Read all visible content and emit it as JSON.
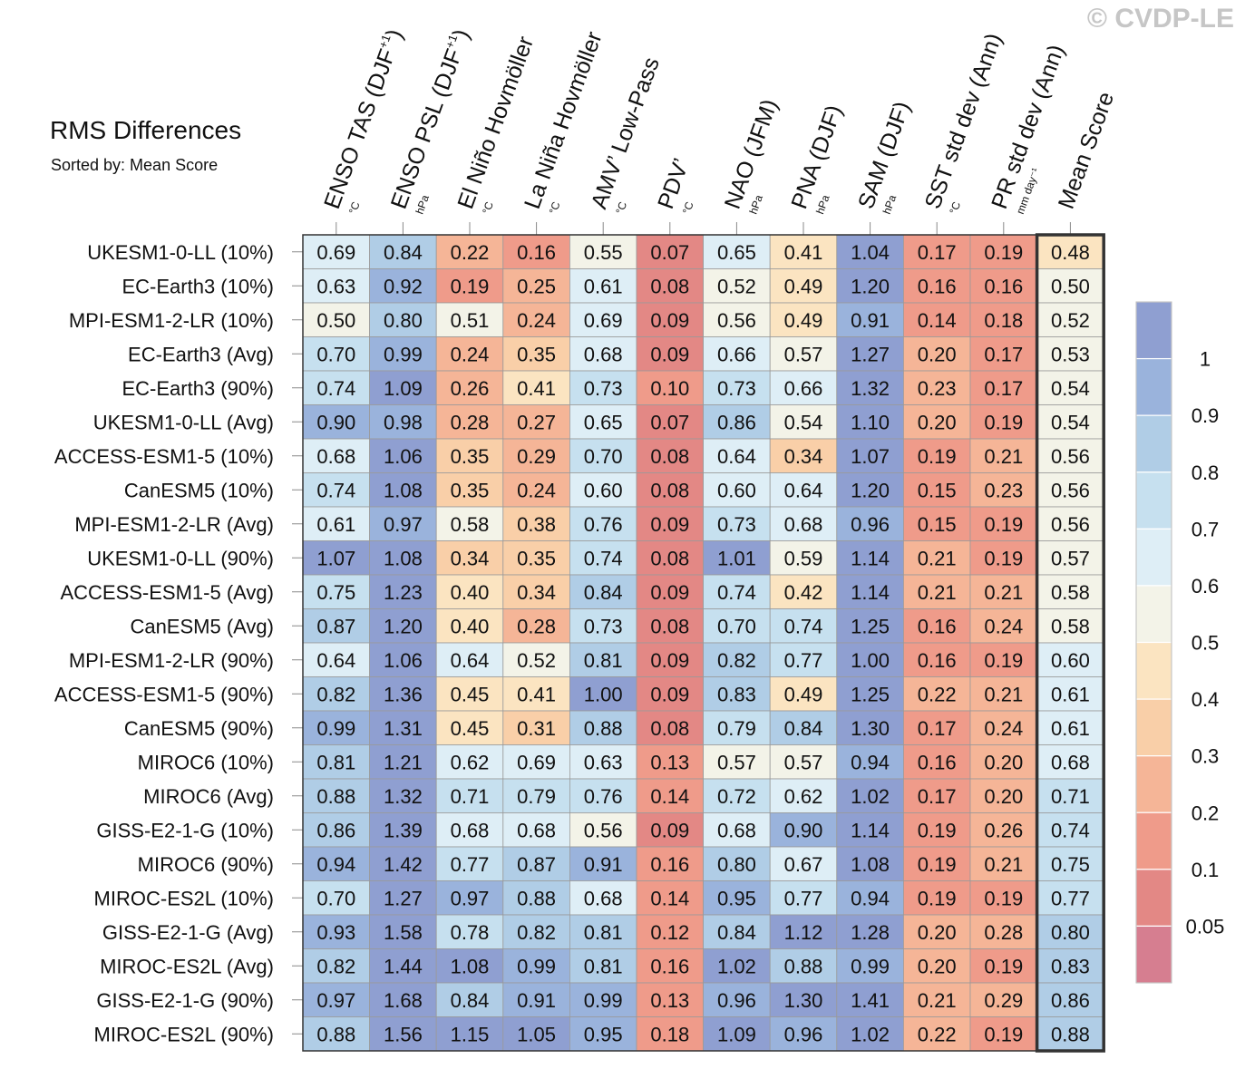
{
  "watermark": "© CVDP-LE",
  "chart_data": {
    "type": "heatmap",
    "title": "RMS Differences",
    "subtitle": "Sorted by: Mean Score",
    "columns": [
      {
        "name": "ENSO TAS (DJF",
        "sup": "+1",
        "close": ")",
        "unit": "°C"
      },
      {
        "name": "ENSO PSL (DJF",
        "sup": "+1",
        "close": ")",
        "unit": "hPa"
      },
      {
        "name": "El Niño Hovmöller",
        "sup": "",
        "close": "",
        "unit": "°C"
      },
      {
        "name": "La Niña Hovmöller",
        "sup": "",
        "close": "",
        "unit": "°C"
      },
      {
        "name": "AMV’ Low-Pass",
        "sup": "",
        "close": "",
        "unit": "°C"
      },
      {
        "name": "PDV’",
        "sup": "",
        "close": "",
        "unit": "°C"
      },
      {
        "name": "NAO (JFM)",
        "sup": "",
        "close": "",
        "unit": "hPa"
      },
      {
        "name": "PNA (DJF)",
        "sup": "",
        "close": "",
        "unit": "hPa"
      },
      {
        "name": "SAM (DJF)",
        "sup": "",
        "close": "",
        "unit": "hPa"
      },
      {
        "name": "SST std dev (Ann)",
        "sup": "",
        "close": "",
        "unit": "°C"
      },
      {
        "name": "PR std dev (Ann)",
        "sup": "",
        "close": "",
        "unit": "mm day⁻¹"
      },
      {
        "name": "Mean Score",
        "sup": "",
        "close": "",
        "unit": ""
      }
    ],
    "rows": [
      "UKESM1-0-LL (10%)",
      "EC-Earth3 (10%)",
      "MPI-ESM1-2-LR (10%)",
      "EC-Earth3 (Avg)",
      "EC-Earth3 (90%)",
      "UKESM1-0-LL (Avg)",
      "ACCESS-ESM1-5 (10%)",
      "CanESM5 (10%)",
      "MPI-ESM1-2-LR (Avg)",
      "UKESM1-0-LL (90%)",
      "ACCESS-ESM1-5 (Avg)",
      "CanESM5 (Avg)",
      "MPI-ESM1-2-LR (90%)",
      "ACCESS-ESM1-5 (90%)",
      "CanESM5 (90%)",
      "MIROC6 (10%)",
      "MIROC6 (Avg)",
      "GISS-E2-1-G (10%)",
      "MIROC6 (90%)",
      "MIROC-ES2L (10%)",
      "GISS-E2-1-G (Avg)",
      "MIROC-ES2L (Avg)",
      "GISS-E2-1-G (90%)",
      "MIROC-ES2L (90%)"
    ],
    "values": [
      [
        "0.69",
        "0.84",
        "0.22",
        "0.16",
        "0.55",
        "0.07",
        "0.65",
        "0.41",
        "1.04",
        "0.17",
        "0.19",
        "0.48"
      ],
      [
        "0.63",
        "0.92",
        "0.19",
        "0.25",
        "0.61",
        "0.08",
        "0.52",
        "0.49",
        "1.20",
        "0.16",
        "0.16",
        "0.50"
      ],
      [
        "0.50",
        "0.80",
        "0.51",
        "0.24",
        "0.69",
        "0.09",
        "0.56",
        "0.49",
        "0.91",
        "0.14",
        "0.18",
        "0.52"
      ],
      [
        "0.70",
        "0.99",
        "0.24",
        "0.35",
        "0.68",
        "0.09",
        "0.66",
        "0.57",
        "1.27",
        "0.20",
        "0.17",
        "0.53"
      ],
      [
        "0.74",
        "1.09",
        "0.26",
        "0.41",
        "0.73",
        "0.10",
        "0.73",
        "0.66",
        "1.32",
        "0.23",
        "0.17",
        "0.54"
      ],
      [
        "0.90",
        "0.98",
        "0.28",
        "0.27",
        "0.65",
        "0.07",
        "0.86",
        "0.54",
        "1.10",
        "0.20",
        "0.19",
        "0.54"
      ],
      [
        "0.68",
        "1.06",
        "0.35",
        "0.29",
        "0.70",
        "0.08",
        "0.64",
        "0.34",
        "1.07",
        "0.19",
        "0.21",
        "0.56"
      ],
      [
        "0.74",
        "1.08",
        "0.35",
        "0.24",
        "0.60",
        "0.08",
        "0.60",
        "0.64",
        "1.20",
        "0.15",
        "0.23",
        "0.56"
      ],
      [
        "0.61",
        "0.97",
        "0.58",
        "0.38",
        "0.76",
        "0.09",
        "0.73",
        "0.68",
        "0.96",
        "0.15",
        "0.19",
        "0.56"
      ],
      [
        "1.07",
        "1.08",
        "0.34",
        "0.35",
        "0.74",
        "0.08",
        "1.01",
        "0.59",
        "1.14",
        "0.21",
        "0.19",
        "0.57"
      ],
      [
        "0.75",
        "1.23",
        "0.40",
        "0.34",
        "0.84",
        "0.09",
        "0.74",
        "0.42",
        "1.14",
        "0.21",
        "0.21",
        "0.58"
      ],
      [
        "0.87",
        "1.20",
        "0.40",
        "0.28",
        "0.73",
        "0.08",
        "0.70",
        "0.74",
        "1.25",
        "0.16",
        "0.24",
        "0.58"
      ],
      [
        "0.64",
        "1.06",
        "0.64",
        "0.52",
        "0.81",
        "0.09",
        "0.82",
        "0.77",
        "1.00",
        "0.16",
        "0.19",
        "0.60"
      ],
      [
        "0.82",
        "1.36",
        "0.45",
        "0.41",
        "1.00",
        "0.09",
        "0.83",
        "0.49",
        "1.25",
        "0.22",
        "0.21",
        "0.61"
      ],
      [
        "0.99",
        "1.31",
        "0.45",
        "0.31",
        "0.88",
        "0.08",
        "0.79",
        "0.84",
        "1.30",
        "0.17",
        "0.24",
        "0.61"
      ],
      [
        "0.81",
        "1.21",
        "0.62",
        "0.69",
        "0.63",
        "0.13",
        "0.57",
        "0.57",
        "0.94",
        "0.16",
        "0.20",
        "0.68"
      ],
      [
        "0.88",
        "1.32",
        "0.71",
        "0.79",
        "0.76",
        "0.14",
        "0.72",
        "0.62",
        "1.02",
        "0.17",
        "0.20",
        "0.71"
      ],
      [
        "0.86",
        "1.39",
        "0.68",
        "0.68",
        "0.56",
        "0.09",
        "0.68",
        "0.90",
        "1.14",
        "0.19",
        "0.26",
        "0.74"
      ],
      [
        "0.94",
        "1.42",
        "0.77",
        "0.87",
        "0.91",
        "0.16",
        "0.80",
        "0.67",
        "1.08",
        "0.19",
        "0.21",
        "0.75"
      ],
      [
        "0.70",
        "1.27",
        "0.97",
        "0.88",
        "0.68",
        "0.14",
        "0.95",
        "0.77",
        "0.94",
        "0.19",
        "0.19",
        "0.77"
      ],
      [
        "0.93",
        "1.58",
        "0.78",
        "0.82",
        "0.81",
        "0.12",
        "0.84",
        "1.12",
        "1.28",
        "0.20",
        "0.28",
        "0.80"
      ],
      [
        "0.82",
        "1.44",
        "1.08",
        "0.99",
        "0.81",
        "0.16",
        "1.02",
        "0.88",
        "0.99",
        "0.20",
        "0.19",
        "0.83"
      ],
      [
        "0.97",
        "1.68",
        "0.84",
        "0.91",
        "0.99",
        "0.13",
        "0.96",
        "1.30",
        "1.41",
        "0.21",
        "0.29",
        "0.86"
      ],
      [
        "0.88",
        "1.56",
        "1.15",
        "1.05",
        "0.95",
        "0.18",
        "1.09",
        "0.96",
        "1.02",
        "0.22",
        "0.19",
        "0.88"
      ]
    ],
    "highlighted_column": "Mean Score",
    "colorbar": {
      "labels": [
        "1",
        "0.9",
        "0.8",
        "0.7",
        "0.6",
        "0.5",
        "0.4",
        "0.3",
        "0.2",
        "0.1",
        "0.05"
      ],
      "thresholds": [
        0.05,
        0.1,
        0.2,
        0.3,
        0.4,
        0.5,
        0.6,
        0.7,
        0.8,
        0.9,
        1
      ],
      "colors": [
        "#d67e90",
        "#e38885",
        "#ef9b8a",
        "#f5b597",
        "#f9cfa8",
        "#fbe4c1",
        "#f3f3e8",
        "#deeef6",
        "#c6e0ef",
        "#b0cde6",
        "#9ab3dc",
        "#8f9fd1"
      ]
    }
  }
}
